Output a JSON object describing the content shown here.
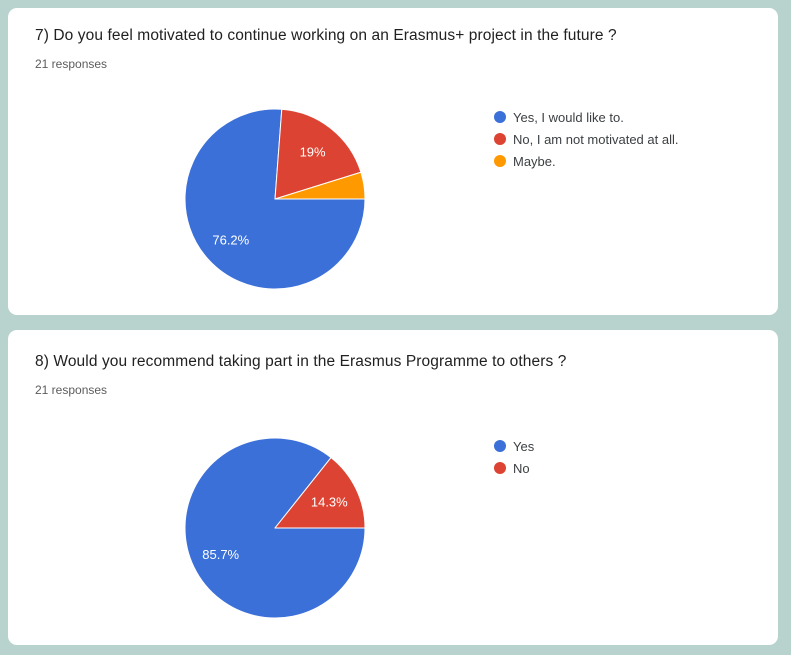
{
  "page": {
    "background_color": "#b8d3ce",
    "card_background_color": "#ffffff"
  },
  "cards": [
    {
      "title": "7) Do you feel motivated to continue working on an Erasmus+ project in the future ?",
      "responses_label": "21 responses"
    },
    {
      "title": "8) Would you recommend taking part in the Erasmus Programme to others ?",
      "responses_label": "21 responses"
    }
  ],
  "chart_data": [
    {
      "type": "pie",
      "title": "7) Do you feel motivated to continue working on an Erasmus+ project in the future ?",
      "responses_total": 21,
      "categories": [
        "Yes, I would like to.",
        "No, I am not motivated at all.",
        "Maybe."
      ],
      "values_percent": [
        76.2,
        19,
        4.8
      ],
      "counts": [
        16,
        4,
        1
      ],
      "slice_labels": [
        "76.2%",
        "19%",
        ""
      ],
      "colors": [
        "#3b70d8",
        "#dc4332",
        "#ff9900"
      ],
      "slice_label_color": "#ffffff",
      "legend_position": "right",
      "start_angle_deg": 90,
      "direction": "clockwise"
    },
    {
      "type": "pie",
      "title": "8) Would you recommend taking part in the Erasmus Programme to others ?",
      "responses_total": 21,
      "categories": [
        "Yes",
        "No"
      ],
      "values_percent": [
        85.7,
        14.3
      ],
      "counts": [
        18,
        3
      ],
      "slice_labels": [
        "85.7%",
        "14.3%"
      ],
      "colors": [
        "#3b70d8",
        "#dc4332"
      ],
      "slice_label_color": "#ffffff",
      "legend_position": "right",
      "start_angle_deg": 90,
      "direction": "clockwise"
    }
  ]
}
